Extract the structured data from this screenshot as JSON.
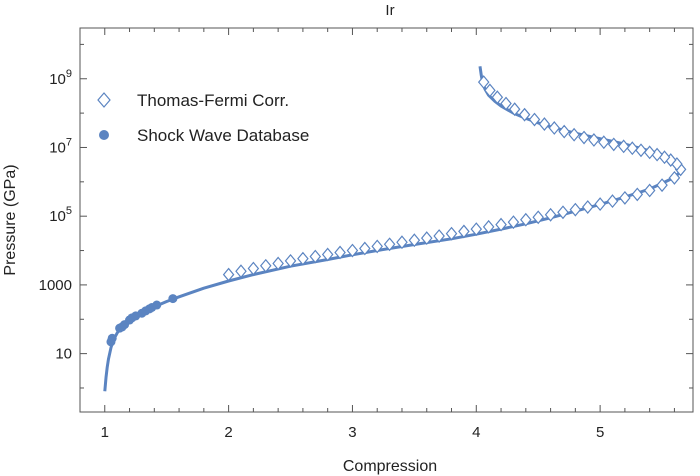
{
  "chart_data": {
    "type": "scatter",
    "title": "Ir",
    "xlabel": "Compression",
    "ylabel": "Pressure (GPa)",
    "x_scale": "linear",
    "y_scale": "log",
    "xlim": [
      0.8,
      5.75
    ],
    "ylim": [
      0.2,
      30000000000
    ],
    "x_ticks": [
      {
        "value": 1,
        "label": "1"
      },
      {
        "value": 2,
        "label": "2"
      },
      {
        "value": 3,
        "label": "3"
      },
      {
        "value": 4,
        "label": "4"
      },
      {
        "value": 5,
        "label": "5"
      }
    ],
    "y_ticks": [
      {
        "value": 10,
        "label": "10",
        "sup": ""
      },
      {
        "value": 1000,
        "label": "1000",
        "sup": ""
      },
      {
        "value": 100000,
        "label": "10",
        "sup": "5"
      },
      {
        "value": 10000000,
        "label": "10",
        "sup": "7"
      },
      {
        "value": 1000000000,
        "label": "10",
        "sup": "9"
      }
    ],
    "grid": false,
    "legend_position": "top-left",
    "accent_color": "#5b84c1",
    "series": [
      {
        "name": "Thomas-Fermi Corr.",
        "marker": "open-diamond",
        "x": [
          2.0,
          2.1,
          2.2,
          2.3,
          2.4,
          2.5,
          2.6,
          2.7,
          2.8,
          2.9,
          3.0,
          3.1,
          3.2,
          3.3,
          3.4,
          3.5,
          3.6,
          3.7,
          3.8,
          3.9,
          4.0,
          4.1,
          4.2,
          4.3,
          4.4,
          4.5,
          4.6,
          4.7,
          4.8,
          4.9,
          5.0,
          5.1,
          5.2,
          5.3,
          5.4,
          5.5,
          5.6,
          5.65,
          5.62,
          5.57,
          5.52,
          5.46,
          5.4,
          5.33,
          5.26,
          5.19,
          5.11,
          5.03,
          4.95,
          4.87,
          4.79,
          4.71,
          4.63,
          4.55,
          4.47,
          4.39,
          4.31,
          4.24,
          4.17,
          4.11,
          4.06
        ],
        "y": [
          2000,
          2500,
          3000,
          3600,
          4200,
          5000,
          5800,
          6700,
          7700,
          8800,
          10000,
          11500,
          13200,
          15200,
          17500,
          20000,
          23000,
          26500,
          31000,
          36000,
          42000,
          49000,
          57000,
          67000,
          79000,
          93000,
          110000,
          130000,
          155000,
          185000,
          225000,
          275000,
          340000,
          430000,
          560000,
          800000,
          1300000,
          2300000,
          3300000,
          4300000,
          5200000,
          6200000,
          7200000,
          8300000,
          9500000,
          10800000,
          12300000,
          14200000,
          16500000,
          19500000,
          23500000,
          29000000,
          37000000,
          48000000,
          65000000,
          90000000,
          130000000,
          190000000,
          290000000,
          460000000,
          800000000
        ]
      },
      {
        "name": "Shock Wave Database",
        "marker": "filled-circle",
        "x": [
          1.05,
          1.06,
          1.12,
          1.14,
          1.16,
          1.2,
          1.22,
          1.25,
          1.3,
          1.33,
          1.36,
          1.38,
          1.42,
          1.55
        ],
        "y": [
          22,
          28,
          55,
          60,
          70,
          95,
          110,
          125,
          150,
          175,
          200,
          220,
          260,
          400
        ]
      },
      {
        "name": "",
        "marker": "line",
        "x": [
          1.0,
          1.01,
          1.02,
          1.03,
          1.05,
          1.07,
          1.1,
          1.15,
          1.2,
          1.3,
          1.4,
          1.5,
          1.6,
          1.8,
          2.0,
          2.2,
          2.5,
          2.8,
          3.0,
          3.2,
          3.5,
          3.8,
          4.0,
          4.2,
          4.4,
          4.6,
          4.8,
          5.0,
          5.2,
          5.4,
          5.5,
          5.6,
          5.65,
          5.66,
          5.64,
          5.6,
          5.55,
          5.5,
          5.4,
          5.3,
          5.2,
          5.1,
          5.0,
          4.9,
          4.8,
          4.7,
          4.6,
          4.5,
          4.4,
          4.3,
          4.2,
          4.15,
          4.1,
          4.07,
          4.05,
          4.04,
          4.03
        ],
        "y": [
          0.8,
          2,
          4,
          7,
          15,
          25,
          40,
          70,
          100,
          160,
          230,
          330,
          450,
          800,
          1300,
          2000,
          3500,
          5500,
          7500,
          10000,
          15000,
          22000,
          30000,
          42000,
          60000,
          90000,
          140000,
          220000,
          360000,
          620000,
          900000,
          1350000,
          2000000,
          2600000,
          3400000,
          4300000,
          5300000,
          6200000,
          8000000,
          10000000,
          12500000,
          15000000,
          18000000,
          21500000,
          26000000,
          32000000,
          40000000,
          52000000,
          70000000,
          100000000,
          160000000,
          220000000,
          330000000,
          500000000,
          800000000,
          1300000000,
          2300000000
        ]
      }
    ]
  }
}
